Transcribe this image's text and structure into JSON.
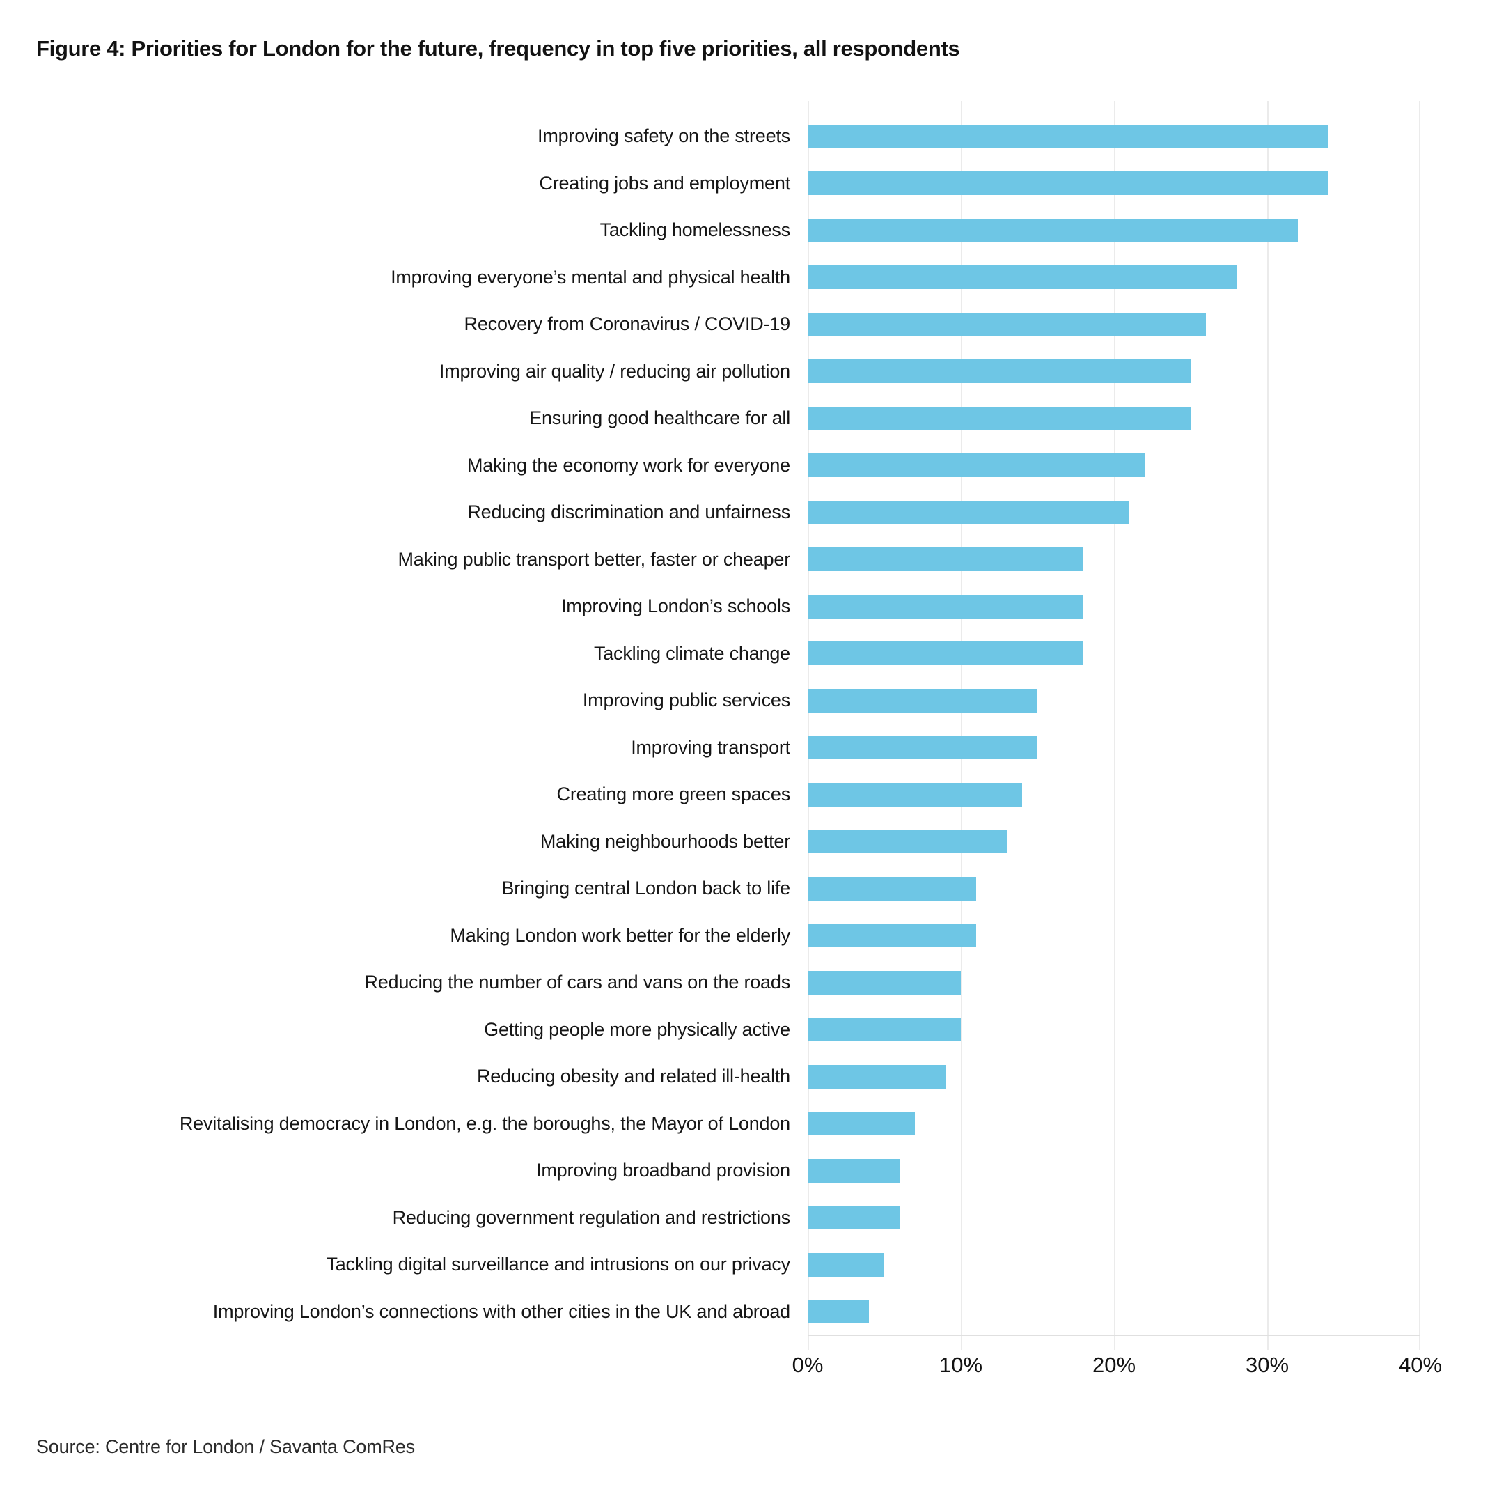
{
  "title": "Figure 4: Priorities for London for the future, frequency in top five priorities, all respondents",
  "source": "Source: Centre for London / Savanta ComRes",
  "colors": {
    "bar": "#6ec6e5",
    "gridline": "#ebebeb",
    "axis_line": "#e0e0e0",
    "text": "#161616"
  },
  "chart_data": {
    "type": "bar",
    "orientation": "horizontal",
    "title": "Figure 4: Priorities for London for the future, frequency in top five priorities, all respondents",
    "xlabel": "",
    "ylabel": "",
    "xlim": [
      0,
      40
    ],
    "grid": "vertical",
    "legend_position": "none",
    "value_unit": "%",
    "x_tick_labels": [
      "0%",
      "10%",
      "20%",
      "30%",
      "40%"
    ],
    "x_tick_values": [
      0,
      10,
      20,
      30,
      40
    ],
    "categories": [
      "Improving safety on the streets",
      "Creating jobs and employment",
      "Tackling homelessness",
      "Improving everyone’s mental and physical health",
      "Recovery from Coronavirus / COVID-19",
      "Improving air quality / reducing air pollution",
      "Ensuring good healthcare for all",
      "Making the economy work for everyone",
      "Reducing discrimination and unfairness",
      "Making public transport better, faster or cheaper",
      "Improving London’s schools",
      "Tackling climate change",
      "Improving public services",
      "Improving transport",
      "Creating more green spaces",
      "Making neighbourhoods better",
      "Bringing central London back to life",
      "Making London work better for the elderly",
      "Reducing the number of cars and vans on the roads",
      "Getting people more physically active",
      "Reducing obesity and related ill-health",
      "Revitalising democracy in London, e.g. the boroughs, the Mayor of London",
      "Improving broadband provision",
      "Reducing government regulation and restrictions",
      "Tackling digital surveillance and intrusions on our privacy",
      "Improving London’s connections with other cities in the UK and abroad"
    ],
    "values": [
      34,
      34,
      32,
      28,
      26,
      25,
      25,
      22,
      21,
      18,
      18,
      18,
      15,
      15,
      14,
      13,
      11,
      11,
      10,
      10,
      9,
      7,
      6,
      6,
      5,
      4
    ]
  }
}
